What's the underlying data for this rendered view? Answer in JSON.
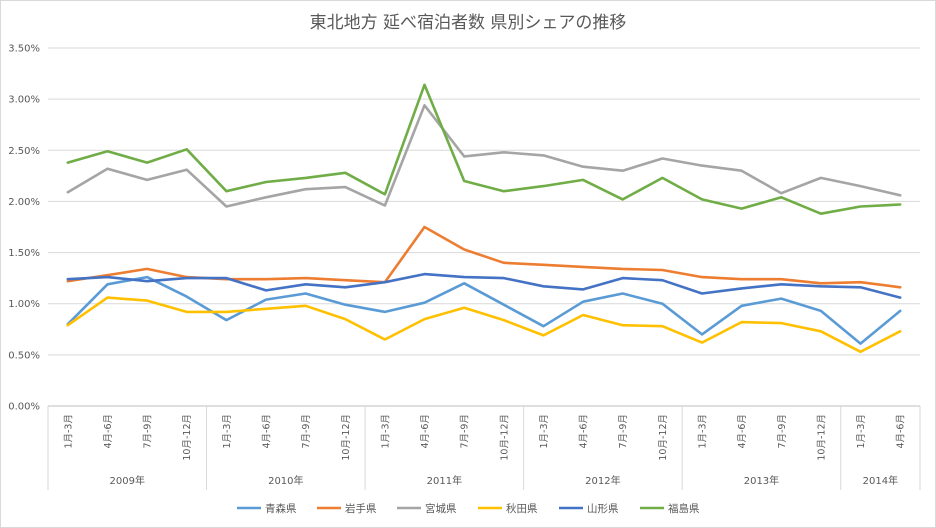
{
  "chart_data": {
    "type": "line",
    "title": "東北地方 延べ宿泊者数 県別シェアの推移",
    "ylim": [
      0,
      0.035
    ],
    "yticks": [
      0,
      0.005,
      0.01,
      0.015,
      0.02,
      0.025,
      0.03,
      0.035
    ],
    "ytick_labels": [
      "0.00%",
      "0.50%",
      "1.00%",
      "1.50%",
      "2.00%",
      "2.50%",
      "3.00%",
      "3.50%"
    ],
    "grid": true,
    "legend_position": "bottom",
    "categories": [
      "1月-3月",
      "4月-6月",
      "7月-9月",
      "10月-12月",
      "1月-3月",
      "4月-6月",
      "7月-9月",
      "10月-12月",
      "1月-3月",
      "4月-6月",
      "7月-9月",
      "10月-12月",
      "1月-3月",
      "4月-6月",
      "7月-9月",
      "10月-12月",
      "1月-3月",
      "4月-6月",
      "7月-9月",
      "10月-12月",
      "1月-3月",
      "4月-6月"
    ],
    "years": [
      {
        "label": "2009年",
        "count": 4
      },
      {
        "label": "2010年",
        "count": 4
      },
      {
        "label": "2011年",
        "count": 4
      },
      {
        "label": "2012年",
        "count": 4
      },
      {
        "label": "2013年",
        "count": 4
      },
      {
        "label": "2014年",
        "count": 2
      }
    ],
    "series": [
      {
        "name": "青森県",
        "color": "#5B9BD5",
        "values": [
          0.008,
          0.0119,
          0.0126,
          0.0107,
          0.0084,
          0.0104,
          0.011,
          0.0099,
          0.0092,
          0.0101,
          0.012,
          0.0099,
          0.0078,
          0.0102,
          0.011,
          0.01,
          0.007,
          0.0098,
          0.0105,
          0.0093,
          0.0061,
          0.0093
        ]
      },
      {
        "name": "岩手県",
        "color": "#ED7D31",
        "values": [
          0.0122,
          0.0128,
          0.0134,
          0.0126,
          0.0124,
          0.0124,
          0.0125,
          0.0123,
          0.0121,
          0.0175,
          0.0153,
          0.014,
          0.0138,
          0.0136,
          0.0134,
          0.0133,
          0.0126,
          0.0124,
          0.0124,
          0.012,
          0.0121,
          0.0116
        ]
      },
      {
        "name": "宮城県",
        "color": "#A5A5A5",
        "values": [
          0.0209,
          0.0232,
          0.0221,
          0.0231,
          0.0195,
          0.0204,
          0.0212,
          0.0214,
          0.0196,
          0.0294,
          0.0244,
          0.0248,
          0.0245,
          0.0234,
          0.023,
          0.0242,
          0.0235,
          0.023,
          0.0208,
          0.0223,
          0.0215,
          0.0206
        ]
      },
      {
        "name": "秋田県",
        "color": "#FFC000",
        "values": [
          0.0079,
          0.0106,
          0.0103,
          0.0092,
          0.0092,
          0.0095,
          0.0098,
          0.0085,
          0.0065,
          0.0085,
          0.0096,
          0.0084,
          0.0069,
          0.0089,
          0.0079,
          0.0078,
          0.0062,
          0.0082,
          0.0081,
          0.0073,
          0.0053,
          0.0073
        ]
      },
      {
        "name": "山形県",
        "color": "#4472C4",
        "values": [
          0.0124,
          0.0126,
          0.0122,
          0.0125,
          0.0125,
          0.0113,
          0.0119,
          0.0116,
          0.0121,
          0.0129,
          0.0126,
          0.0125,
          0.0117,
          0.0114,
          0.0125,
          0.0123,
          0.011,
          0.0115,
          0.0119,
          0.0117,
          0.0116,
          0.0106
        ]
      },
      {
        "name": "福島県",
        "color": "#70AD47",
        "values": [
          0.0238,
          0.0249,
          0.0238,
          0.0251,
          0.021,
          0.0219,
          0.0223,
          0.0228,
          0.0207,
          0.0314,
          0.022,
          0.021,
          0.0215,
          0.0221,
          0.0202,
          0.0223,
          0.0202,
          0.0193,
          0.0204,
          0.0188,
          0.0195,
          0.0197
        ]
      }
    ]
  }
}
